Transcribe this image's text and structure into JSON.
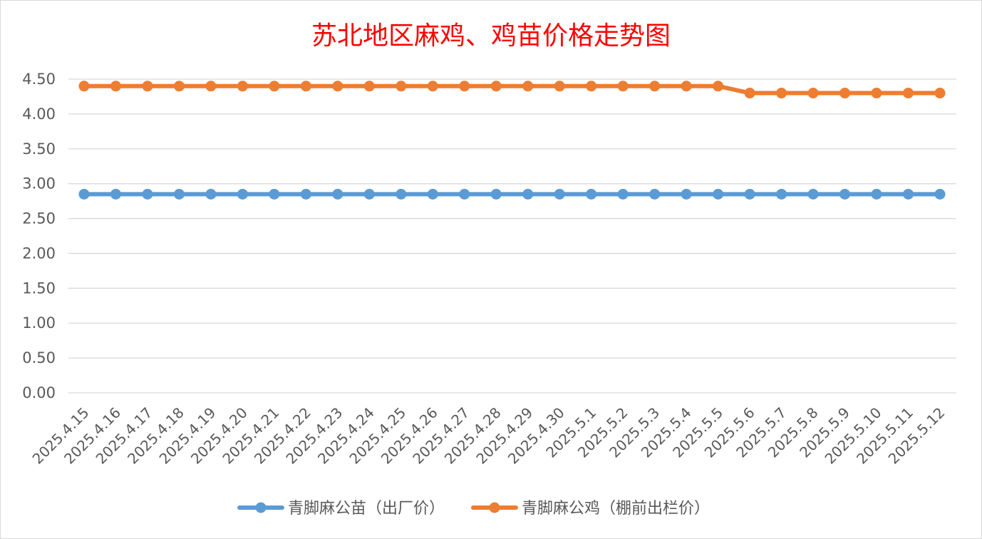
{
  "chart_data": {
    "type": "line",
    "title": "苏北地区麻鸡、鸡苗价格走势图",
    "xlabel": "",
    "ylabel": "",
    "ylim": [
      0,
      4.5
    ],
    "yticks": [
      "0.00",
      "0.50",
      "1.00",
      "1.50",
      "2.00",
      "2.50",
      "3.00",
      "3.50",
      "4.00",
      "4.50"
    ],
    "grid": true,
    "legend_position": "bottom",
    "categories": [
      "2025.4.15",
      "2025.4.16",
      "2025.4.17",
      "2025.4.18",
      "2025.4.19",
      "2025.4.20",
      "2025.4.21",
      "2025.4.22",
      "2025.4.23",
      "2025.4.24",
      "2025.4.25",
      "2025.4.26",
      "2025.4.27",
      "2025.4.28",
      "2025.4.29",
      "2025.4.30",
      "2025.5.1",
      "2025.5.2",
      "2025.5.3",
      "2025.5.4",
      "2025.5.5",
      "2025.5.6",
      "2025.5.7",
      "2025.5.8",
      "2025.5.9",
      "2025.5.10",
      "2025.5.11",
      "2025.5.12"
    ],
    "series": [
      {
        "name": "青脚麻公苗（出厂价）",
        "color": "#5b9bd5",
        "values": [
          2.85,
          2.85,
          2.85,
          2.85,
          2.85,
          2.85,
          2.85,
          2.85,
          2.85,
          2.85,
          2.85,
          2.85,
          2.85,
          2.85,
          2.85,
          2.85,
          2.85,
          2.85,
          2.85,
          2.85,
          2.85,
          2.85,
          2.85,
          2.85,
          2.85,
          2.85,
          2.85,
          2.85
        ]
      },
      {
        "name": "青脚麻公鸡（棚前出栏价）",
        "color": "#ed7d31",
        "values": [
          4.4,
          4.4,
          4.4,
          4.4,
          4.4,
          4.4,
          4.4,
          4.4,
          4.4,
          4.4,
          4.4,
          4.4,
          4.4,
          4.4,
          4.4,
          4.4,
          4.4,
          4.4,
          4.4,
          4.4,
          4.4,
          4.3,
          4.3,
          4.3,
          4.3,
          4.3,
          4.3,
          4.3
        ]
      }
    ]
  }
}
